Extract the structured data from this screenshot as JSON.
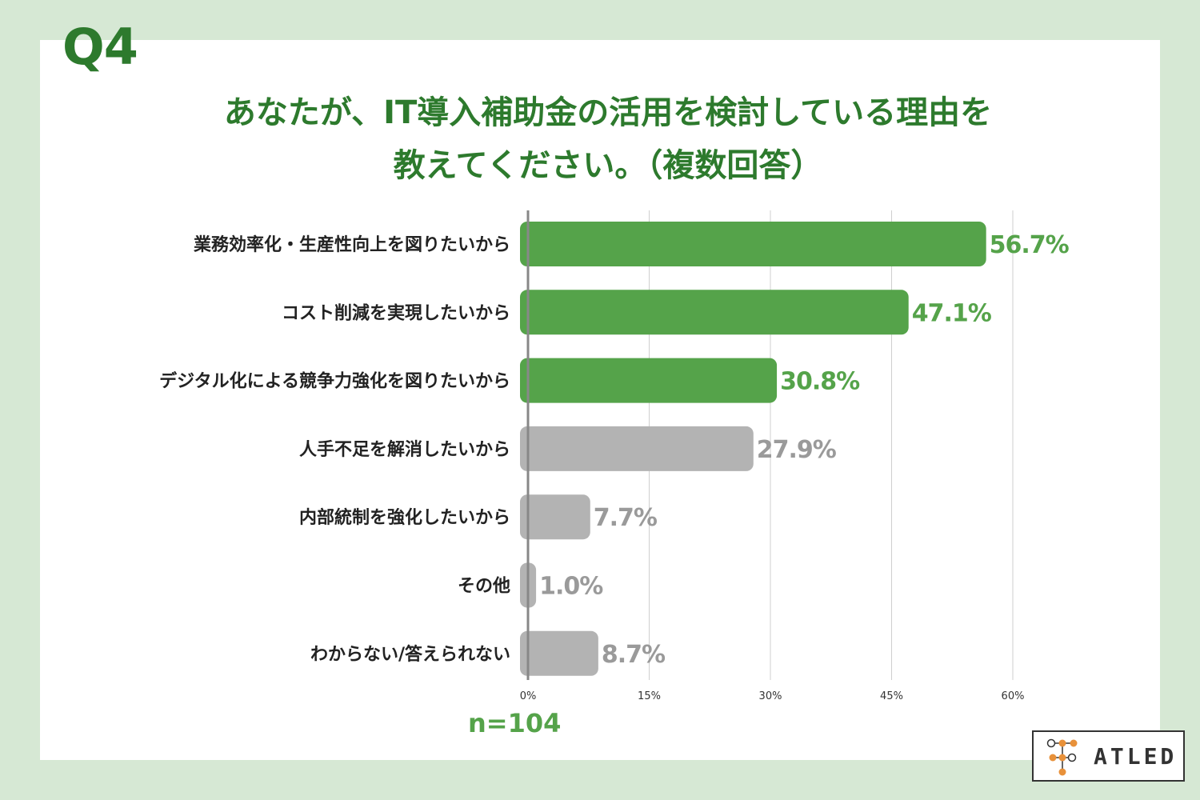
{
  "header": {
    "question_number": "Q4",
    "title_line1": "あなたが、IT導入補助金の活用を検討している理由を",
    "title_line2": "教えてください。（複数回答）"
  },
  "colors": {
    "background": "#d6e8d4",
    "accent_green": "#55a34a",
    "title_green": "#2d7a2d",
    "bar_gray": "#b3b3b3",
    "label_gray": "#9a9a9a"
  },
  "chart_data": {
    "type": "bar",
    "orientation": "horizontal",
    "categories": [
      "業務効率化・生産性向上を図りたいから",
      "コスト削減を実現したいから",
      "デジタル化による競争力強化を図りたいから",
      "人手不足を解消したいから",
      "内部統制を強化したいから",
      "その他",
      "わからない/答えられない"
    ],
    "values": [
      56.7,
      47.1,
      30.8,
      27.9,
      7.7,
      1.0,
      8.7
    ],
    "value_labels": [
      "56.7%",
      "47.1%",
      "30.8%",
      "27.9%",
      "7.7%",
      "1.0%",
      "8.7%"
    ],
    "highlighted": [
      true,
      true,
      true,
      false,
      false,
      false,
      false
    ],
    "xlim": [
      0,
      60
    ],
    "xticks": [
      0,
      15,
      30,
      45,
      60
    ],
    "xtick_labels": [
      "0%",
      "15%",
      "30%",
      "45%",
      "60%"
    ],
    "grid": true,
    "sample_size": "n=104"
  },
  "logo": {
    "text": "ATLED",
    "icon": "node-tree-icon"
  }
}
